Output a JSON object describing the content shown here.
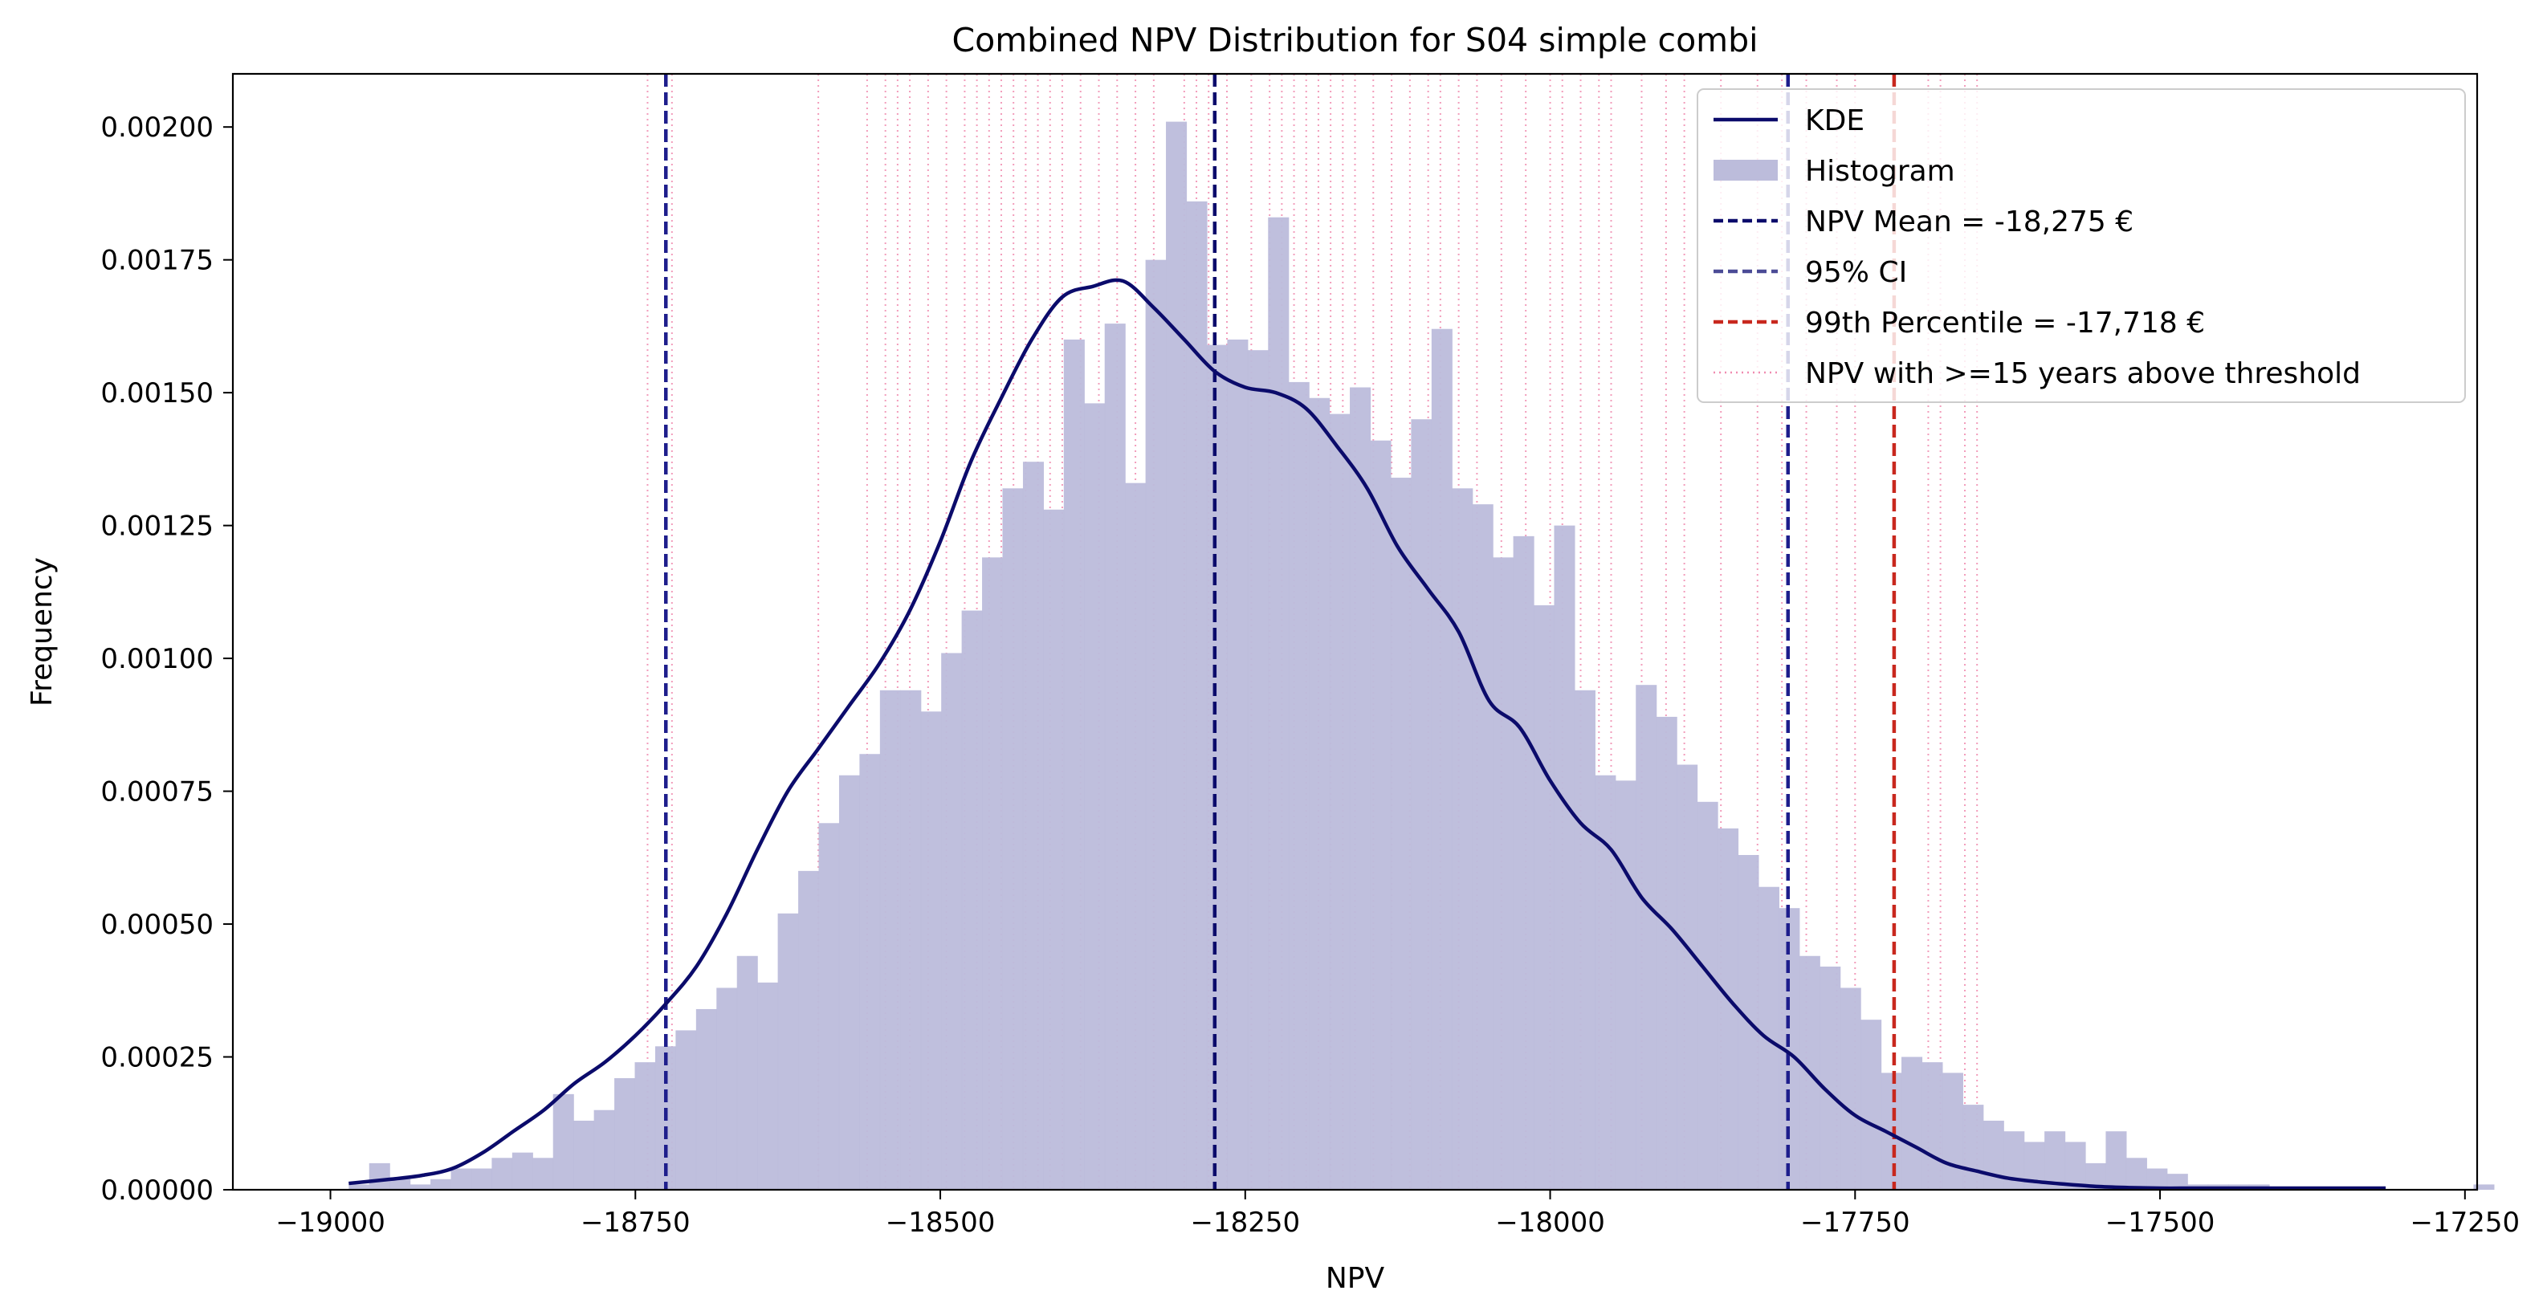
{
  "chart_data": {
    "type": "bar",
    "title": "Combined NPV Distribution for S04 simple combi",
    "xlabel": "NPV",
    "ylabel": "Frequency",
    "xlim": [
      -19080,
      -17240
    ],
    "ylim": [
      0,
      0.0021
    ],
    "x_ticks": [
      -19000,
      -18750,
      -18500,
      -18250,
      -18000,
      -17750,
      -17500,
      -17250
    ],
    "x_tick_labels": [
      "−19000",
      "−18750",
      "−18500",
      "−18250",
      "−18000",
      "−17750",
      "−17500",
      "−17250"
    ],
    "y_ticks": [
      0,
      0.00025,
      0.0005,
      0.00075,
      0.001,
      0.00125,
      0.0015,
      0.00175,
      0.002
    ],
    "y_tick_labels": [
      "0.00000",
      "0.00025",
      "0.00050",
      "0.00075",
      "0.00100",
      "0.00125",
      "0.00150",
      "0.00175",
      "0.00200"
    ],
    "grid": false,
    "legend_position": "top-right",
    "histogram": {
      "name": "Histogram",
      "color": "#bcbcdb",
      "bin_start": -18985,
      "bin_width": 16.75,
      "values": [
        1e-05,
        5e-05,
        2e-05,
        1e-05,
        2e-05,
        4e-05,
        4e-05,
        6e-05,
        7e-05,
        6e-05,
        0.00018,
        0.00013,
        0.00015,
        0.00021,
        0.00024,
        0.00027,
        0.0003,
        0.00034,
        0.00038,
        0.00044,
        0.00039,
        0.00052,
        0.0006,
        0.00069,
        0.00078,
        0.00082,
        0.00094,
        0.00094,
        0.0009,
        0.00101,
        0.00109,
        0.00119,
        0.00132,
        0.00137,
        0.00128,
        0.0016,
        0.00148,
        0.00163,
        0.00133,
        0.00175,
        0.00201,
        0.00186,
        0.00159,
        0.0016,
        0.00158,
        0.00183,
        0.00152,
        0.00149,
        0.00146,
        0.00151,
        0.00141,
        0.00134,
        0.00145,
        0.00162,
        0.00132,
        0.00129,
        0.00119,
        0.00123,
        0.0011,
        0.00125,
        0.00094,
        0.00078,
        0.00077,
        0.00095,
        0.00089,
        0.0008,
        0.00073,
        0.00068,
        0.00063,
        0.00057,
        0.00053,
        0.00044,
        0.00042,
        0.00038,
        0.00032,
        0.00022,
        0.00025,
        0.00024,
        0.00022,
        0.00016,
        0.00013,
        0.00011,
        9e-05,
        0.00011,
        9e-05,
        5e-05,
        0.00011,
        6e-05,
        4e-05,
        3e-05,
        1e-05,
        1e-05,
        1e-05,
        1e-05,
        0.0,
        0.0,
        0.0,
        0.0,
        0.0,
        0.0,
        0.0,
        0.0,
        0.0,
        0.0,
        1e-05,
        0.0,
        0.0,
        0.0,
        0.0,
        1e-05
      ]
    },
    "kde": {
      "name": "KDE",
      "color": "#0b0b6b",
      "x": [
        -18985,
        -18950,
        -18925,
        -18900,
        -18875,
        -18850,
        -18825,
        -18800,
        -18775,
        -18750,
        -18725,
        -18700,
        -18675,
        -18650,
        -18625,
        -18600,
        -18575,
        -18550,
        -18525,
        -18500,
        -18475,
        -18450,
        -18425,
        -18400,
        -18375,
        -18350,
        -18325,
        -18300,
        -18275,
        -18250,
        -18225,
        -18200,
        -18175,
        -18150,
        -18125,
        -18100,
        -18075,
        -18050,
        -18025,
        -18000,
        -17975,
        -17950,
        -17925,
        -17900,
        -17875,
        -17850,
        -17825,
        -17800,
        -17775,
        -17750,
        -17725,
        -17700,
        -17675,
        -17650,
        -17625,
        -17600,
        -17575,
        -17550,
        -17525,
        -17500,
        -17475,
        -17450,
        -17425,
        -17400,
        -17375,
        -17350,
        -17325,
        -17315
      ],
      "y": [
        1.2e-05,
        2e-05,
        2.7e-05,
        4e-05,
        7e-05,
        0.00011,
        0.00015,
        0.0002,
        0.00024,
        0.00029,
        0.00035,
        0.00042,
        0.00052,
        0.00064,
        0.00075,
        0.00083,
        0.00091,
        0.00099,
        0.00109,
        0.00122,
        0.00137,
        0.00149,
        0.0016,
        0.00168,
        0.0017,
        0.00171,
        0.00166,
        0.0016,
        0.00154,
        0.00151,
        0.0015,
        0.00147,
        0.0014,
        0.00132,
        0.00121,
        0.00113,
        0.00105,
        0.00092,
        0.00087,
        0.00077,
        0.00069,
        0.00064,
        0.00055,
        0.00049,
        0.00042,
        0.00035,
        0.00029,
        0.00025,
        0.00019,
        0.00014,
        0.00011,
        8e-05,
        5e-05,
        3.5e-05,
        2.2e-05,
        1.5e-05,
        1e-05,
        6e-06,
        4e-06,
        3e-06,
        3e-06,
        3e-06,
        3e-06,
        3e-06,
        3e-06,
        3e-06,
        3e-06,
        3e-06
      ]
    },
    "vlines": {
      "mean": {
        "name": "NPV Mean = -18,275 €",
        "x": -18275,
        "color": "#0b0b6b"
      },
      "ci": {
        "name": "95% CI",
        "x": [
          -18725,
          -17805
        ],
        "color": "#4b4b96"
      },
      "p99": {
        "name": "99th Percentile = -17,718 €",
        "x": -17718,
        "color": "#c8281e"
      }
    },
    "threshold_lines": {
      "name": "NPV with >=15 years above threshold",
      "color": "#f08cb0",
      "x": [
        -18740,
        -18720,
        -18600,
        -18560,
        -18545,
        -18535,
        -18525,
        -18510,
        -18495,
        -18480,
        -18470,
        -18460,
        -18450,
        -18440,
        -18430,
        -18420,
        -18410,
        -18400,
        -18385,
        -18370,
        -18355,
        -18340,
        -18325,
        -18300,
        -18290,
        -18280,
        -18265,
        -18245,
        -18230,
        -18220,
        -18210,
        -18200,
        -18190,
        -18180,
        -18170,
        -18160,
        -18145,
        -18130,
        -18115,
        -18100,
        -18090,
        -18075,
        -18060,
        -18040,
        -18020,
        -18000,
        -17990,
        -17975,
        -17960,
        -17950,
        -17925,
        -17905,
        -17890,
        -17860,
        -17830,
        -17810,
        -17790,
        -17765,
        -17750,
        -17690,
        -17680,
        -17660,
        -17650
      ]
    }
  }
}
